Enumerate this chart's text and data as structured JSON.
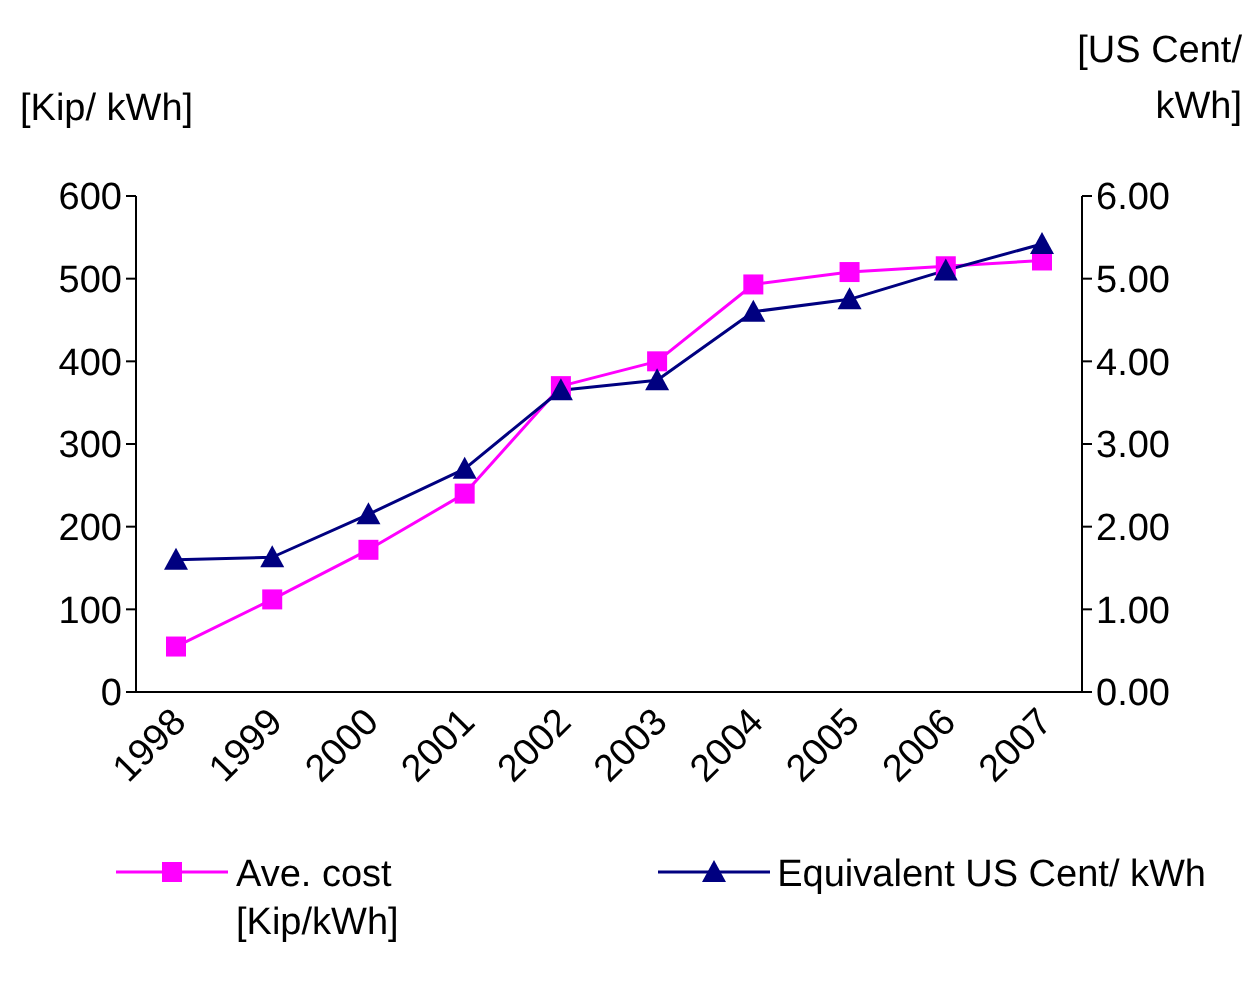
{
  "chart_data": {
    "type": "line",
    "xlabel": null,
    "ylabel": "[Kip/ kWh]",
    "y2label": "[US Cent/ kWh]",
    "categories": [
      "1998",
      "1999",
      "2000",
      "2001",
      "2002",
      "2003",
      "2004",
      "2005",
      "2006",
      "2007"
    ],
    "series": [
      {
        "name": "Ave. cost [Kip/kWh]",
        "color": "#ff00ff",
        "marker": "square",
        "values": [
          55,
          112,
          172,
          240,
          370,
          400,
          493,
          508,
          515,
          522
        ]
      },
      {
        "name": "Equivalent US Cent/ kWh",
        "color": "#000080",
        "marker": "triangle",
        "axis": "y2",
        "values": [
          1.6,
          1.63,
          2.15,
          2.7,
          3.65,
          3.77,
          4.6,
          4.75,
          5.1,
          5.42
        ]
      }
    ],
    "ylim": [
      0,
      600
    ],
    "yticks": [
      0,
      100,
      200,
      300,
      400,
      500,
      600
    ],
    "y2lim": [
      0,
      6
    ],
    "y2ticks": [
      {
        "value": 0,
        "label": "0.00"
      },
      {
        "value": 1,
        "label": "1.00"
      },
      {
        "value": 2,
        "label": "2.00"
      },
      {
        "value": 3,
        "label": "3.00"
      },
      {
        "value": 4,
        "label": "4.00"
      },
      {
        "value": 5,
        "label": "5.00"
      },
      {
        "value": 6,
        "label": "6.00"
      }
    ],
    "grid": false,
    "legend": "bottom"
  }
}
